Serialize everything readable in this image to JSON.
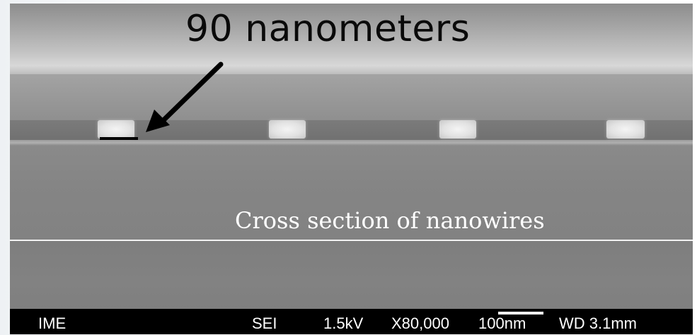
{
  "annotation": {
    "headline": "90 nanometers",
    "caption": "Cross section of nanowires"
  },
  "sem_databar": {
    "institution": "IME",
    "detector": "SEI",
    "voltage": "1.5kV",
    "magnification": "X80,000",
    "scale": "100nm",
    "working_distance": "WD 3.1mm"
  },
  "scene": {
    "nanowire_count": 4,
    "colors": {
      "databar": "#000000",
      "caption_text": "#ffffff",
      "headline_text": "#0a0a0a",
      "arrow": "#000000"
    }
  }
}
